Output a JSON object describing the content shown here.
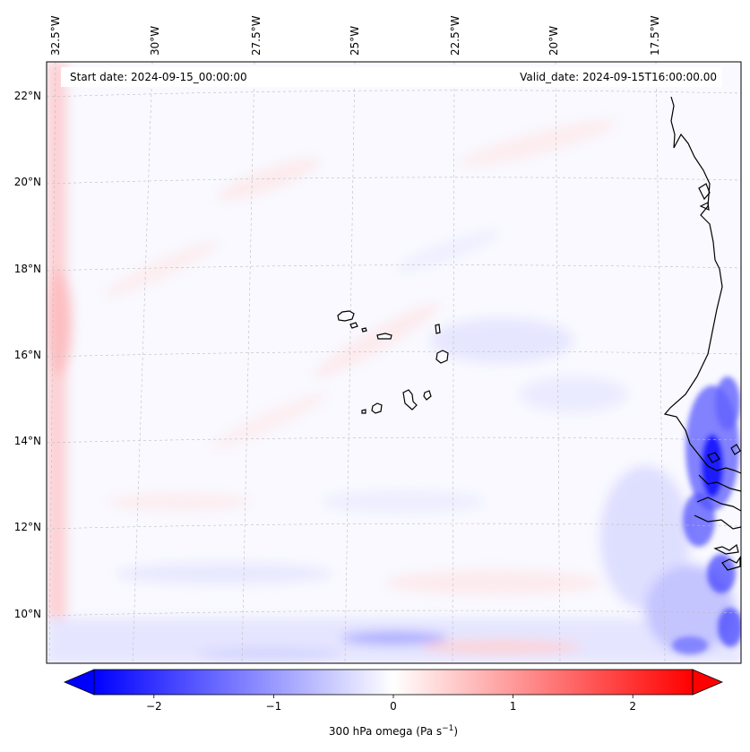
{
  "map": {
    "start_date": "Start date: 2024-09-15_00:00:00",
    "valid_date": "Valid_date: 2024-09-15T16:00:00.00",
    "lon_labels": [
      "32.5°W",
      "30°W",
      "27.5°W",
      "25°W",
      "22.5°W",
      "20°W",
      "17.5°W"
    ],
    "lat_labels": [
      "22°N",
      "20°N",
      "18°N",
      "16°N",
      "14°N",
      "12°N",
      "10°N"
    ]
  },
  "colorbar": {
    "label": "300 hPa omega (Pa s",
    "label_sup": "−1",
    "label_close": ")",
    "ticks": [
      "−2",
      "−1",
      "0",
      "1",
      "2"
    ],
    "tick_values": [
      -2,
      -1,
      0,
      1,
      2
    ],
    "range": [
      -2.5,
      2.5
    ],
    "colormap": "bwr",
    "neg_color": "#0000ff",
    "mid_color": "#ffffff",
    "pos_color": "#ff0000"
  }
}
